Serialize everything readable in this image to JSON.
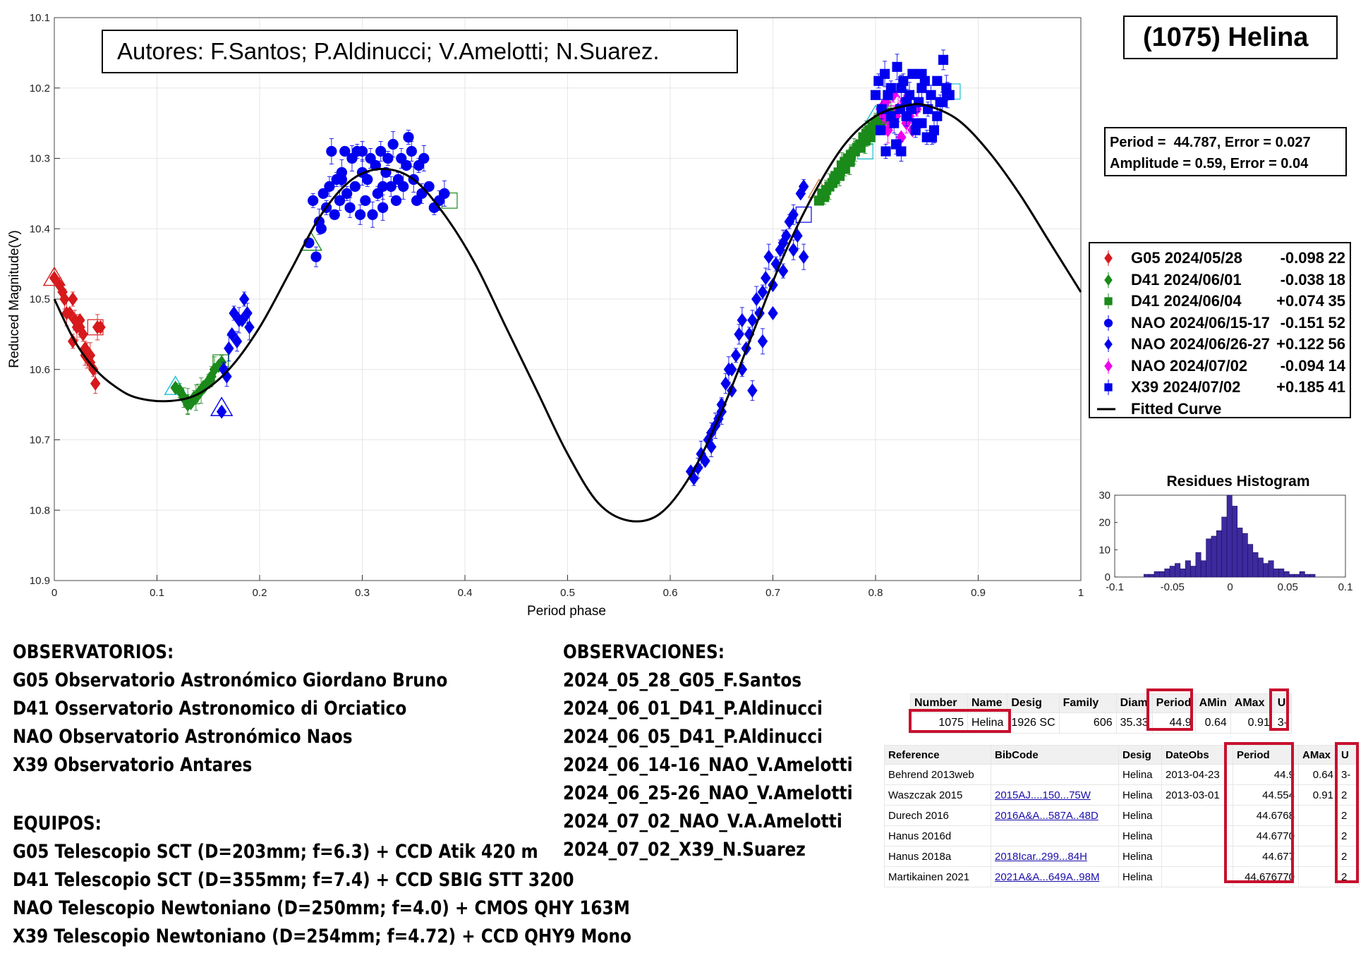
{
  "header": {
    "authors": "Autores: F.Santos; P.Aldinucci; V.Amelotti; N.Suarez.",
    "object": "(1075) Helina",
    "period_line": "Period =  44.787, Error = 0.027",
    "amplitude_line": "Amplitude = 0.59, Error = 0.04"
  },
  "chart_data": [
    {
      "type": "scatter",
      "title": "",
      "xlabel": "Period phase",
      "ylabel": "Reduced Magnitude(V)",
      "xlim": [
        0,
        1
      ],
      "ylim": [
        10.1,
        10.9
      ],
      "y_reversed": true,
      "grid": true,
      "xticks": [
        "0",
        "0.1",
        "0.2",
        "0.3",
        "0.4",
        "0.5",
        "0.6",
        "0.7",
        "0.8",
        "0.9",
        "1"
      ],
      "yticks": [
        "10.1",
        "10.2",
        "10.3",
        "10.4",
        "10.5",
        "10.6",
        "10.7",
        "10.8",
        "10.9"
      ],
      "legend_position": "right",
      "legend": [
        {
          "label": "G05 2024/05/28",
          "offset": "-0.098",
          "count": "22",
          "color": "#d7191c",
          "marker": "diamond"
        },
        {
          "label": "D41 2024/06/01",
          "offset": "-0.038",
          "count": "18",
          "color": "#1a8a1a",
          "marker": "diamond"
        },
        {
          "label": "D41 2024/06/04",
          "offset": "+0.074",
          "count": "35",
          "color": "#1a8a1a",
          "marker": "square"
        },
        {
          "label": "NAO 2024/06/15-17",
          "offset": "-0.151",
          "count": "52",
          "color": "#0000ee",
          "marker": "circle"
        },
        {
          "label": "NAO 2024/06/26-27",
          "offset": "+0.122",
          "count": "56",
          "color": "#0000ee",
          "marker": "diamond"
        },
        {
          "label": "NAO 2024/07/02",
          "offset": "-0.094",
          "count": "14",
          "color": "#ee00ee",
          "marker": "diamond"
        },
        {
          "label": "X39 2024/07/02",
          "offset": "+0.185",
          "count": "41",
          "color": "#0000ee",
          "marker": "square"
        },
        {
          "label": "Fitted Curve",
          "offset": "",
          "count": "",
          "color": "#000000",
          "marker": "line"
        }
      ],
      "fitted_curve": {
        "x": [
          0,
          0.02,
          0.04,
          0.06,
          0.08,
          0.11,
          0.14,
          0.17,
          0.2,
          0.23,
          0.26,
          0.29,
          0.32,
          0.35,
          0.38,
          0.41,
          0.44,
          0.47,
          0.5,
          0.53,
          0.56,
          0.59,
          0.62,
          0.65,
          0.68,
          0.71,
          0.74,
          0.77,
          0.8,
          0.83,
          0.85,
          0.88,
          0.91,
          0.94,
          0.97,
          1
        ],
        "y": [
          10.5,
          10.56,
          10.6,
          10.625,
          10.64,
          10.645,
          10.635,
          10.6,
          10.54,
          10.46,
          10.38,
          10.33,
          10.315,
          10.33,
          10.38,
          10.45,
          10.54,
          10.63,
          10.72,
          10.79,
          10.815,
          10.805,
          10.75,
          10.66,
          10.55,
          10.44,
          10.35,
          10.28,
          10.24,
          10.225,
          10.225,
          10.245,
          10.29,
          10.35,
          10.42,
          10.49
        ]
      },
      "series": [
        {
          "name": "G05 2024/05/28",
          "color": "#d7191c",
          "marker": "diamond",
          "x": [
            0.0,
            0.005,
            0.01,
            0.012,
            0.015,
            0.018,
            0.02,
            0.022,
            0.025,
            0.028,
            0.03,
            0.032,
            0.035,
            0.038,
            0.04,
            0.042,
            0.045,
            0.018,
            0.025,
            0.035,
            0.008,
            0.03
          ],
          "y": [
            10.47,
            10.48,
            10.5,
            10.52,
            10.52,
            10.5,
            10.53,
            10.54,
            10.53,
            10.55,
            10.58,
            10.58,
            10.59,
            10.6,
            10.62,
            10.54,
            10.54,
            10.56,
            10.54,
            10.58,
            10.49,
            10.57
          ]
        },
        {
          "name": "D41 2024/06/01",
          "color": "#1a8a1a",
          "marker": "diamond",
          "x": [
            0.118,
            0.122,
            0.126,
            0.13,
            0.133,
            0.136,
            0.14,
            0.143,
            0.146,
            0.15,
            0.153,
            0.156,
            0.16,
            0.163,
            0.13,
            0.138,
            0.145,
            0.152
          ],
          "y": [
            10.626,
            10.63,
            10.64,
            10.645,
            10.648,
            10.64,
            10.635,
            10.63,
            10.625,
            10.617,
            10.61,
            10.6,
            10.595,
            10.59,
            10.65,
            10.64,
            10.625,
            10.615
          ]
        },
        {
          "name": "D41 2024/06/04",
          "color": "#1a8a1a",
          "marker": "square",
          "x": [
            0.745,
            0.748,
            0.752,
            0.755,
            0.758,
            0.761,
            0.764,
            0.767,
            0.77,
            0.773,
            0.776,
            0.779,
            0.782,
            0.785,
            0.788,
            0.791,
            0.794,
            0.797,
            0.8,
            0.803,
            0.806,
            0.809,
            0.812,
            0.815,
            0.76,
            0.77,
            0.78,
            0.79,
            0.8,
            0.75,
            0.765,
            0.775,
            0.785,
            0.795,
            0.805
          ],
          "y": [
            10.36,
            10.35,
            10.345,
            10.34,
            10.335,
            10.325,
            10.32,
            10.31,
            10.305,
            10.3,
            10.295,
            10.29,
            10.285,
            10.28,
            10.27,
            10.265,
            10.26,
            10.255,
            10.25,
            10.245,
            10.24,
            10.245,
            10.24,
            10.235,
            10.33,
            10.315,
            10.29,
            10.275,
            10.26,
            10.355,
            10.325,
            10.305,
            10.285,
            10.27,
            10.25
          ]
        },
        {
          "name": "NAO 2024/06/15-17",
          "color": "#0000ee",
          "marker": "circle",
          "x": [
            0.248,
            0.252,
            0.255,
            0.258,
            0.262,
            0.265,
            0.268,
            0.27,
            0.273,
            0.275,
            0.278,
            0.28,
            0.283,
            0.285,
            0.288,
            0.29,
            0.293,
            0.295,
            0.298,
            0.3,
            0.303,
            0.305,
            0.308,
            0.31,
            0.313,
            0.315,
            0.318,
            0.32,
            0.323,
            0.325,
            0.328,
            0.33,
            0.333,
            0.335,
            0.338,
            0.34,
            0.343,
            0.345,
            0.348,
            0.35,
            0.353,
            0.355,
            0.358,
            0.36,
            0.365,
            0.37,
            0.375,
            0.38,
            0.26,
            0.28,
            0.3,
            0.32
          ],
          "y": [
            10.42,
            10.36,
            10.44,
            10.39,
            10.35,
            10.37,
            10.34,
            10.29,
            10.38,
            10.33,
            10.36,
            10.32,
            10.29,
            10.35,
            10.37,
            10.3,
            10.34,
            10.29,
            10.38,
            10.32,
            10.36,
            10.33,
            10.3,
            10.38,
            10.31,
            10.35,
            10.29,
            10.37,
            10.32,
            10.3,
            10.34,
            10.28,
            10.36,
            10.33,
            10.3,
            10.34,
            10.31,
            10.27,
            10.29,
            10.33,
            10.36,
            10.31,
            10.35,
            10.3,
            10.34,
            10.37,
            10.36,
            10.35,
            10.4,
            10.33,
            10.29,
            10.34
          ]
        },
        {
          "name": "NAO 2024/06/26-27",
          "color": "#0000ee",
          "marker": "diamond",
          "x": [
            0.163,
            0.165,
            0.168,
            0.17,
            0.173,
            0.175,
            0.178,
            0.18,
            0.183,
            0.185,
            0.188,
            0.19,
            0.62,
            0.623,
            0.627,
            0.63,
            0.634,
            0.637,
            0.64,
            0.644,
            0.647,
            0.65,
            0.654,
            0.657,
            0.66,
            0.664,
            0.667,
            0.67,
            0.674,
            0.677,
            0.68,
            0.684,
            0.687,
            0.69,
            0.693,
            0.696,
            0.7,
            0.703,
            0.707,
            0.71,
            0.713,
            0.716,
            0.72,
            0.724,
            0.727,
            0.73,
            0.64,
            0.65,
            0.66,
            0.67,
            0.68,
            0.69,
            0.7,
            0.71,
            0.72,
            0.73
          ],
          "y": [
            10.66,
            10.6,
            10.61,
            10.57,
            10.55,
            10.52,
            10.56,
            10.53,
            10.53,
            10.5,
            10.52,
            10.54,
            10.745,
            10.755,
            10.74,
            10.72,
            10.73,
            10.7,
            10.71,
            10.68,
            10.67,
            10.65,
            10.62,
            10.6,
            10.63,
            10.58,
            10.55,
            10.53,
            10.57,
            10.55,
            10.53,
            10.5,
            10.52,
            10.49,
            10.47,
            10.44,
            10.48,
            10.45,
            10.43,
            10.42,
            10.41,
            10.39,
            10.38,
            10.41,
            10.35,
            10.34,
            10.69,
            10.66,
            10.6,
            10.6,
            10.63,
            10.56,
            10.52,
            10.46,
            10.43,
            10.44
          ]
        },
        {
          "name": "NAO 2024/07/02",
          "color": "#ee00ee",
          "marker": "diamond",
          "x": [
            0.805,
            0.808,
            0.81,
            0.812,
            0.815,
            0.817,
            0.82,
            0.822,
            0.825,
            0.828,
            0.83,
            0.833,
            0.836,
            0.84
          ],
          "y": [
            10.23,
            10.24,
            10.22,
            10.26,
            10.25,
            10.21,
            10.24,
            10.23,
            10.27,
            10.22,
            10.25,
            10.24,
            10.26,
            10.23
          ]
        },
        {
          "name": "X39 2024/07/02",
          "color": "#0000ee",
          "marker": "square",
          "x": [
            0.8,
            0.803,
            0.806,
            0.809,
            0.812,
            0.815,
            0.818,
            0.821,
            0.824,
            0.827,
            0.83,
            0.833,
            0.836,
            0.839,
            0.842,
            0.845,
            0.848,
            0.851,
            0.854,
            0.857,
            0.86,
            0.863,
            0.866,
            0.869,
            0.872,
            0.81,
            0.82,
            0.83,
            0.84,
            0.85,
            0.86,
            0.87,
            0.805,
            0.815,
            0.825,
            0.835,
            0.845,
            0.855,
            0.865,
            0.825,
            0.845
          ],
          "y": [
            10.21,
            10.19,
            10.23,
            10.18,
            10.21,
            10.2,
            10.25,
            10.17,
            10.23,
            10.19,
            10.24,
            10.21,
            10.18,
            10.26,
            10.22,
            10.2,
            10.19,
            10.23,
            10.21,
            10.26,
            10.19,
            10.22,
            10.16,
            10.2,
            10.21,
            10.29,
            10.28,
            10.22,
            10.25,
            10.27,
            10.24,
            10.21,
            10.26,
            10.24,
            10.29,
            10.23,
            10.18,
            10.27,
            10.22,
            10.2,
            10.25
          ]
        }
      ],
      "open_markers": [
        {
          "x": 0.0,
          "y": 10.47,
          "shape": "triangle",
          "color": "#d7191c"
        },
        {
          "x": 0.04,
          "y": 10.54,
          "shape": "square",
          "color": "#d7191c"
        },
        {
          "x": 0.118,
          "y": 10.625,
          "shape": "triangle",
          "color": "#17becf"
        },
        {
          "x": 0.162,
          "y": 10.59,
          "shape": "square",
          "color": "#1a8a1a"
        },
        {
          "x": 0.163,
          "y": 10.655,
          "shape": "triangle",
          "color": "#0000ee"
        },
        {
          "x": 0.25,
          "y": 10.42,
          "shape": "triangle",
          "color": "#1a8a1a"
        },
        {
          "x": 0.385,
          "y": 10.36,
          "shape": "square",
          "color": "#1a8a1a"
        },
        {
          "x": 0.745,
          "y": 10.345,
          "shape": "triangle",
          "color": "#c87f3a"
        },
        {
          "x": 0.73,
          "y": 10.38,
          "shape": "square",
          "color": "#0000ee"
        },
        {
          "x": 0.8,
          "y": 10.24,
          "shape": "triangle",
          "color": "#17becf"
        },
        {
          "x": 0.79,
          "y": 10.29,
          "shape": "square",
          "color": "#17becf"
        },
        {
          "x": 0.875,
          "y": 10.205,
          "shape": "square",
          "color": "#17becf"
        },
        {
          "x": 0.818,
          "y": 10.215,
          "shape": "triangle",
          "color": "#ee00ee"
        }
      ]
    },
    {
      "type": "bar",
      "title": "Residues Histogram",
      "xlabel": "",
      "ylabel": "",
      "xlim": [
        -0.1,
        0.1
      ],
      "ylim": [
        0,
        30
      ],
      "xticks": [
        "-0.1",
        "-0.05",
        "0",
        "0.05",
        "0.1"
      ],
      "yticks": [
        "0",
        "10",
        "20",
        "30"
      ],
      "bar_color": "#3d2a9e",
      "bin_width": 0.0045,
      "bin_centers": [
        -0.0725,
        -0.068,
        -0.0635,
        -0.059,
        -0.0545,
        -0.05,
        -0.0455,
        -0.041,
        -0.0365,
        -0.032,
        -0.0275,
        -0.023,
        -0.0185,
        -0.014,
        -0.0095,
        -0.005,
        -0.0005,
        0.004,
        0.0085,
        0.013,
        0.0175,
        0.022,
        0.0265,
        0.031,
        0.0355,
        0.04,
        0.0445,
        0.049,
        0.0535,
        0.058,
        0.0625,
        0.067,
        0.0715
      ],
      "values": [
        1,
        1,
        2,
        2,
        3,
        4,
        5,
        3,
        6,
        4,
        9,
        6,
        14,
        15,
        17,
        22,
        30,
        26,
        18,
        16,
        12,
        9,
        7,
        5,
        6,
        3,
        3,
        2,
        1,
        1,
        2,
        1,
        1
      ]
    }
  ],
  "observatorios": {
    "heading": "OBSERVATORIOS:",
    "items": [
      "G05 Observatorio Astronómico Giordano Bruno",
      "D41 Osservatorio Astronomico di Orciatico",
      "NAO Observatorio Astronómico Naos",
      "X39 Observatorio Antares"
    ]
  },
  "equipos": {
    "heading": "EQUIPOS:",
    "items": [
      "G05 Telescopio SCT (D=203mm; f=6.3) + CCD Atik 420 m",
      "D41 Telescopio SCT (D=355mm; f=7.4) + CCD SBIG STT 3200",
      "NAO Telescopio Newtoniano (D=250mm; f=4.0) + CMOS QHY 163M",
      "X39 Telescopio Newtoniano (D=254mm; f=4.72) + CCD QHY9 Mono"
    ]
  },
  "observaciones": {
    "heading": "OBSERVACIONES:",
    "items": [
      "2024_05_28_G05_F.Santos",
      "2024_06_01_D41_P.Aldinucci",
      "2024_06_05_D41_P.Aldinucci",
      "2024_06_14-16_NAO_V.Amelotti",
      "2024_06_25-26_NAO_V.Amelotti",
      "2024_07_02_NAO_V.A.Amelotti",
      "2024_07_02_X39_N.Suarez"
    ]
  },
  "lcdb_table": {
    "headers": [
      "Number",
      "Name",
      "Desig",
      "Family",
      "Diam",
      "Period",
      "AMin",
      "AMax",
      "U"
    ],
    "row": [
      "1075",
      "Helina",
      "1926 SC",
      "606",
      "35.33",
      "44.9",
      "0.64",
      "0.91",
      "3-"
    ]
  },
  "ref_table": {
    "headers": [
      "Reference",
      "BibCode",
      "Desig",
      "DateObs",
      "Period",
      "AMax",
      "U"
    ],
    "rows": [
      [
        "Behrend 2013web",
        "",
        "Helina",
        "2013-04-23",
        "44.9",
        "0.64",
        "3-"
      ],
      [
        "Waszczak 2015",
        "2015AJ....150...75W",
        "Helina",
        "2013-03-01",
        "44.554",
        "0.91",
        "2"
      ],
      [
        "Durech 2016",
        "2016A&A...587A..48D",
        "Helina",
        "",
        "44.6768",
        "",
        "2"
      ],
      [
        "Hanus 2016d",
        "",
        "Helina",
        "",
        "44.6770",
        "",
        "2"
      ],
      [
        "Hanus 2018a",
        "2018Icar..299...84H",
        "Helina",
        "",
        "44.677",
        "",
        "2"
      ],
      [
        "Martikainen 2021",
        "2021A&A...649A..98M",
        "Helina",
        "",
        "44.676770",
        "",
        "2"
      ]
    ]
  }
}
